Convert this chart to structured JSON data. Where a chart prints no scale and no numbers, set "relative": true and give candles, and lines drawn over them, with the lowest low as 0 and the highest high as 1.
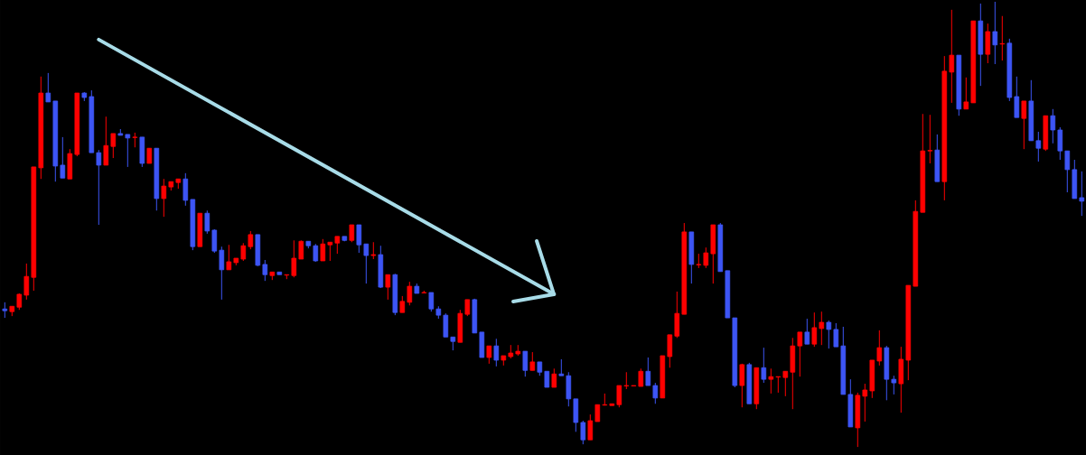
{
  "chart_data": {
    "type": "candlestick",
    "relative": true,
    "series": [
      {
        "type": "line",
        "color": "#a8dce8",
        "values": [
          null,
          null,
          null,
          null,
          null,
          null,
          null,
          null,
          null,
          null,
          null,
          null,
          null,
          0.915,
          null,
          null,
          null,
          null,
          null,
          null,
          null,
          null,
          null,
          null,
          null,
          null,
          null,
          null,
          null,
          null,
          null,
          null,
          null,
          null,
          null,
          null,
          null,
          null,
          null,
          null,
          null,
          null,
          null,
          null,
          null,
          null,
          null,
          null,
          null,
          null,
          null,
          null,
          null,
          null,
          null,
          null,
          null,
          null,
          null,
          null,
          null,
          null,
          null,
          null,
          null,
          null,
          null,
          null,
          null,
          null,
          null,
          null,
          null,
          null,
          null,
          null,
          0.343,
          null,
          null,
          null,
          null,
          null,
          null,
          null,
          null,
          null,
          null,
          null,
          null,
          null,
          null,
          null,
          null,
          null,
          null,
          null,
          null,
          null,
          null,
          null,
          null,
          null,
          null,
          null,
          null,
          null,
          null,
          null,
          null,
          null,
          null,
          null,
          null,
          null,
          null,
          null,
          null,
          null,
          null,
          null,
          null,
          null,
          null,
          null,
          null,
          null,
          null,
          null,
          null,
          null,
          null,
          null,
          null,
          null,
          null,
          null,
          null,
          null,
          null,
          null,
          null,
          null,
          null,
          null,
          null,
          null,
          null,
          null,
          null,
          null
        ]
      }
    ],
    "categories": [
      null,
      null,
      null,
      null,
      null,
      null,
      null,
      null,
      null,
      null,
      null,
      null,
      null,
      null,
      null,
      null,
      null,
      null,
      null,
      null,
      null,
      null,
      null,
      null,
      null,
      null,
      null,
      null,
      null,
      null,
      null,
      null,
      null,
      null,
      null,
      null,
      null,
      null,
      null,
      null,
      null,
      null,
      null,
      null,
      null,
      null,
      null,
      null,
      null,
      null,
      null,
      null,
      null,
      null,
      null,
      null,
      null,
      null,
      null,
      null,
      null,
      null,
      null,
      null,
      null,
      null,
      null,
      null,
      null,
      null,
      null,
      null,
      null,
      null,
      null,
      null,
      null,
      null,
      null,
      null,
      null,
      null,
      null,
      null,
      null,
      null,
      null,
      null,
      null,
      null,
      null,
      null,
      null,
      null,
      null,
      null,
      null,
      null,
      null,
      null,
      null,
      null,
      null,
      null,
      null,
      null,
      null,
      null,
      null,
      null,
      null,
      null,
      null,
      null,
      null,
      null,
      null,
      null,
      null,
      null,
      null,
      null,
      null,
      null,
      null,
      null,
      null,
      null,
      null,
      null,
      null,
      null,
      null,
      null,
      null,
      null,
      null,
      null,
      null,
      null,
      null,
      null,
      null,
      null,
      null,
      null,
      null,
      null,
      null,
      null
    ],
    "ohlc": [
      [
        0.31,
        0.325,
        0.29,
        0.306
      ],
      [
        0.304,
        0.316,
        0.294,
        0.316
      ],
      [
        0.314,
        0.345,
        0.308,
        0.343
      ],
      [
        0.341,
        0.412,
        0.331,
        0.383
      ],
      [
        0.381,
        0.629,
        0.351,
        0.629
      ],
      [
        0.627,
        0.832,
        0.602,
        0.795
      ],
      [
        0.795,
        0.84,
        0.775,
        0.775
      ],
      [
        0.777,
        0.777,
        0.596,
        0.631
      ],
      [
        0.633,
        0.696,
        0.604,
        0.604
      ],
      [
        0.602,
        0.669,
        0.602,
        0.659
      ],
      [
        0.657,
        0.795,
        0.653,
        0.795
      ],
      [
        0.795,
        0.797,
        0.777,
        0.785
      ],
      [
        0.787,
        0.801,
        0.661,
        0.661
      ],
      [
        0.661,
        0.667,
        0.499,
        0.633
      ],
      [
        0.633,
        0.742,
        0.633,
        0.677
      ],
      [
        0.675,
        0.704,
        0.649,
        0.704
      ],
      [
        0.704,
        0.714,
        0.7,
        0.7
      ],
      [
        0.702,
        0.702,
        0.629,
        0.694
      ],
      [
        0.695,
        0.706,
        0.673,
        0.696
      ],
      [
        0.696,
        0.696,
        0.629,
        0.637
      ],
      [
        0.637,
        0.671,
        0.637,
        0.671
      ],
      [
        0.671,
        0.671,
        0.531,
        0.558
      ],
      [
        0.558,
        0.602,
        0.517,
        0.586
      ],
      [
        0.584,
        0.596,
        0.576,
        0.596
      ],
      [
        0.594,
        0.602,
        0.58,
        0.602
      ],
      [
        0.602,
        0.615,
        0.542,
        0.554
      ],
      [
        0.556,
        0.556,
        0.442,
        0.45
      ],
      [
        0.45,
        0.525,
        0.45,
        0.525
      ],
      [
        0.525,
        0.531,
        0.479,
        0.485
      ],
      [
        0.487,
        0.489,
        0.436,
        0.44
      ],
      [
        0.442,
        0.45,
        0.331,
        0.398
      ],
      [
        0.398,
        0.454,
        0.398,
        0.416
      ],
      [
        0.414,
        0.424,
        0.408,
        0.424
      ],
      [
        0.422,
        0.458,
        0.418,
        0.452
      ],
      [
        0.45,
        0.485,
        0.444,
        0.477
      ],
      [
        0.477,
        0.477,
        0.406,
        0.408
      ],
      [
        0.41,
        0.42,
        0.373,
        0.387
      ],
      [
        0.385,
        0.393,
        0.375,
        0.393
      ],
      [
        0.393,
        0.393,
        0.387,
        0.387
      ],
      [
        0.386,
        0.387,
        0.377,
        0.387
      ],
      [
        0.385,
        0.464,
        0.381,
        0.424
      ],
      [
        0.422,
        0.464,
        0.422,
        0.462
      ],
      [
        0.462,
        0.462,
        0.446,
        0.452
      ],
      [
        0.452,
        0.456,
        0.416,
        0.418
      ],
      [
        0.418,
        0.467,
        0.418,
        0.456
      ],
      [
        0.454,
        0.46,
        0.418,
        0.46
      ],
      [
        0.458,
        0.473,
        0.434,
        0.473
      ],
      [
        0.473,
        0.473,
        0.462,
        0.464
      ],
      [
        0.464,
        0.499,
        0.46,
        0.499
      ],
      [
        0.499,
        0.499,
        0.436,
        0.454
      ],
      [
        0.456,
        0.456,
        0.367,
        0.43
      ],
      [
        0.43,
        0.46,
        0.422,
        0.432
      ],
      [
        0.432,
        0.452,
        0.357,
        0.359
      ],
      [
        0.359,
        0.387,
        0.331,
        0.387
      ],
      [
        0.387,
        0.389,
        0.296,
        0.302
      ],
      [
        0.302,
        0.339,
        0.302,
        0.327
      ],
      [
        0.325,
        0.371,
        0.318,
        0.361
      ],
      [
        0.361,
        0.367,
        0.345,
        0.345
      ],
      [
        0.346,
        0.351,
        0.345,
        0.347
      ],
      [
        0.347,
        0.347,
        0.304,
        0.31
      ],
      [
        0.31,
        0.316,
        0.288,
        0.296
      ],
      [
        0.296,
        0.3,
        0.247,
        0.247
      ],
      [
        0.247,
        0.247,
        0.217,
        0.237
      ],
      [
        0.235,
        0.308,
        0.235,
        0.3
      ],
      [
        0.298,
        0.331,
        0.294,
        0.331
      ],
      [
        0.331,
        0.333,
        0.256,
        0.256
      ],
      [
        0.258,
        0.258,
        0.201,
        0.201
      ],
      [
        0.201,
        0.227,
        0.187,
        0.227
      ],
      [
        0.227,
        0.243,
        0.181,
        0.195
      ],
      [
        0.195,
        0.205,
        0.183,
        0.205
      ],
      [
        0.203,
        0.229,
        0.199,
        0.211
      ],
      [
        0.209,
        0.229,
        0.205,
        0.215
      ],
      [
        0.215,
        0.215,
        0.158,
        0.172
      ],
      [
        0.172,
        0.213,
        0.172,
        0.191
      ],
      [
        0.191,
        0.191,
        0.16,
        0.168
      ],
      [
        0.17,
        0.17,
        0.134,
        0.134
      ],
      [
        0.134,
        0.176,
        0.134,
        0.164
      ],
      [
        0.164,
        0.197,
        0.16,
        0.16
      ],
      [
        0.16,
        0.168,
        0.091,
        0.108
      ],
      [
        0.108,
        0.108,
        0.034,
        0.055
      ],
      [
        0.055,
        0.059,
        0.006,
        0.016
      ],
      [
        0.016,
        0.073,
        0.016,
        0.059
      ],
      [
        0.057,
        0.095,
        0.057,
        0.095
      ],
      [
        0.094,
        0.12,
        0.093,
        0.095
      ],
      [
        0.093,
        0.097,
        0.093,
        0.097
      ],
      [
        0.095,
        0.138,
        0.089,
        0.138
      ],
      [
        0.137,
        0.168,
        0.13,
        0.138
      ],
      [
        0.137,
        0.138,
        0.137,
        0.138
      ],
      [
        0.136,
        0.176,
        0.136,
        0.17
      ],
      [
        0.17,
        0.201,
        0.138,
        0.138
      ],
      [
        0.138,
        0.144,
        0.097,
        0.11
      ],
      [
        0.11,
        0.205,
        0.11,
        0.205
      ],
      [
        0.203,
        0.252,
        0.178,
        0.252
      ],
      [
        0.249,
        0.349,
        0.245,
        0.3
      ],
      [
        0.298,
        0.503,
        0.298,
        0.483
      ],
      [
        0.483,
        0.483,
        0.367,
        0.41
      ],
      [
        0.409,
        0.434,
        0.402,
        0.41
      ],
      [
        0.408,
        0.448,
        0.402,
        0.436
      ],
      [
        0.434,
        0.499,
        0.367,
        0.499
      ],
      [
        0.499,
        0.503,
        0.394,
        0.394
      ],
      [
        0.396,
        0.396,
        0.29,
        0.29
      ],
      [
        0.29,
        0.29,
        0.134,
        0.138
      ],
      [
        0.138,
        0.187,
        0.089,
        0.185
      ],
      [
        0.185,
        0.189,
        0.097,
        0.097
      ],
      [
        0.097,
        0.178,
        0.085,
        0.178
      ],
      [
        0.178,
        0.223,
        0.144,
        0.152
      ],
      [
        0.152,
        0.176,
        0.12,
        0.158
      ],
      [
        0.157,
        0.158,
        0.122,
        0.158
      ],
      [
        0.156,
        0.17,
        0.114,
        0.17
      ],
      [
        0.168,
        0.245,
        0.085,
        0.227
      ],
      [
        0.227,
        0.258,
        0.158,
        0.258
      ],
      [
        0.258,
        0.288,
        0.231,
        0.231
      ],
      [
        0.231,
        0.302,
        0.225,
        0.268
      ],
      [
        0.266,
        0.304,
        0.229,
        0.28
      ],
      [
        0.28,
        0.284,
        0.221,
        0.264
      ],
      [
        0.264,
        0.278,
        0.225,
        0.225
      ],
      [
        0.227,
        0.27,
        0.118,
        0.118
      ],
      [
        0.118,
        0.152,
        0.045,
        0.045
      ],
      [
        0.043,
        0.122,
        0.0,
        0.116
      ],
      [
        0.114,
        0.142,
        0.057,
        0.128
      ],
      [
        0.126,
        0.195,
        0.11,
        0.195
      ],
      [
        0.193,
        0.262,
        0.183,
        0.223
      ],
      [
        0.223,
        0.227,
        0.105,
        0.152
      ],
      [
        0.152,
        0.16,
        0.118,
        0.144
      ],
      [
        0.142,
        0.225,
        0.077,
        0.197
      ],
      [
        0.195,
        0.363,
        0.15,
        0.363
      ],
      [
        0.361,
        0.554,
        0.361,
        0.529
      ],
      [
        0.527,
        0.748,
        0.527,
        0.665
      ],
      [
        0.665,
        0.746,
        0.637,
        0.666
      ],
      [
        0.667,
        0.702,
        0.596,
        0.596
      ],
      [
        0.596,
        0.878,
        0.554,
        0.844
      ],
      [
        0.842,
        0.982,
        0.773,
        0.88
      ],
      [
        0.88,
        0.88,
        0.744,
        0.759
      ],
      [
        0.759,
        0.83,
        0.759,
        0.775
      ],
      [
        0.773,
        0.957,
        0.773,
        0.957
      ],
      [
        0.957,
        0.996,
        0.811,
        0.882
      ],
      [
        0.882,
        0.951,
        0.862,
        0.933
      ],
      [
        0.933,
        1.0,
        0.86,
        0.903
      ],
      [
        0.905,
        0.968,
        0.868,
        0.906
      ],
      [
        0.907,
        0.917,
        0.777,
        0.785
      ],
      [
        0.787,
        0.832,
        0.74,
        0.74
      ],
      [
        0.738,
        0.777,
        0.669,
        0.777
      ],
      [
        0.777,
        0.824,
        0.688,
        0.688
      ],
      [
        0.688,
        0.708,
        0.641,
        0.671
      ],
      [
        0.669,
        0.744,
        0.665,
        0.744
      ],
      [
        0.744,
        0.759,
        0.682,
        0.712
      ],
      [
        0.712,
        0.718,
        0.645,
        0.665
      ],
      [
        0.665,
        0.665,
        0.572,
        0.623
      ],
      [
        0.623,
        0.645,
        0.558,
        0.558
      ],
      [
        0.56,
        0.619,
        0.519,
        0.552
      ]
    ],
    "colors": [
      "#3d55f5",
      "#ff0000",
      "#ff0000",
      "#ff0000",
      "#ff0000",
      "#ff0000",
      "#3d55f5",
      "#3d55f5",
      "#3d55f5",
      "#ff0000",
      "#ff0000",
      "#3d55f5",
      "#3d55f5",
      "#3d55f5",
      "#ff0000",
      "#ff0000",
      "#3d55f5",
      "#3d55f5",
      "#ff0000",
      "#3d55f5",
      "#ff0000",
      "#3d55f5",
      "#ff0000",
      "#ff0000",
      "#ff0000",
      "#3d55f5",
      "#3d55f5",
      "#ff0000",
      "#3d55f5",
      "#3d55f5",
      "#3d55f5",
      "#ff0000",
      "#ff0000",
      "#ff0000",
      "#ff0000",
      "#3d55f5",
      "#3d55f5",
      "#ff0000",
      "#3d55f5",
      "#ff0000",
      "#ff0000",
      "#ff0000",
      "#3d55f5",
      "#3d55f5",
      "#ff0000",
      "#ff0000",
      "#ff0000",
      "#3d55f5",
      "#ff0000",
      "#3d55f5",
      "#3d55f5",
      "#ff0000",
      "#3d55f5",
      "#ff0000",
      "#3d55f5",
      "#ff0000",
      "#ff0000",
      "#3d55f5",
      "#ff0000",
      "#3d55f5",
      "#3d55f5",
      "#3d55f5",
      "#3d55f5",
      "#ff0000",
      "#ff0000",
      "#3d55f5",
      "#3d55f5",
      "#ff0000",
      "#3d55f5",
      "#ff0000",
      "#ff0000",
      "#ff0000",
      "#3d55f5",
      "#ff0000",
      "#3d55f5",
      "#3d55f5",
      "#ff0000",
      "#3d55f5",
      "#3d55f5",
      "#3d55f5",
      "#3d55f5",
      "#ff0000",
      "#ff0000",
      "#ff0000",
      "#ff0000",
      "#ff0000",
      "#ff0000",
      "#ff0000",
      "#ff0000",
      "#3d55f5",
      "#3d55f5",
      "#ff0000",
      "#ff0000",
      "#ff0000",
      "#ff0000",
      "#3d55f5",
      "#ff0000",
      "#ff0000",
      "#ff0000",
      "#3d55f5",
      "#3d55f5",
      "#3d55f5",
      "#ff0000",
      "#3d55f5",
      "#ff0000",
      "#3d55f5",
      "#ff0000",
      "#ff0000",
      "#ff0000",
      "#ff0000",
      "#ff0000",
      "#3d55f5",
      "#ff0000",
      "#ff0000",
      "#3d55f5",
      "#3d55f5",
      "#3d55f5",
      "#3d55f5",
      "#ff0000",
      "#ff0000",
      "#ff0000",
      "#ff0000",
      "#3d55f5",
      "#3d55f5",
      "#ff0000",
      "#ff0000",
      "#ff0000",
      "#ff0000",
      "#ff0000",
      "#3d55f5",
      "#ff0000",
      "#ff0000",
      "#3d55f5",
      "#ff0000",
      "#ff0000",
      "#3d55f5",
      "#ff0000",
      "#3d55f5",
      "#ff0000",
      "#3d55f5",
      "#3d55f5",
      "#ff0000",
      "#3d55f5",
      "#3d55f5",
      "#ff0000",
      "#3d55f5",
      "#3d55f5",
      "#3d55f5",
      "#3d55f5",
      "#3d55f5"
    ]
  }
}
